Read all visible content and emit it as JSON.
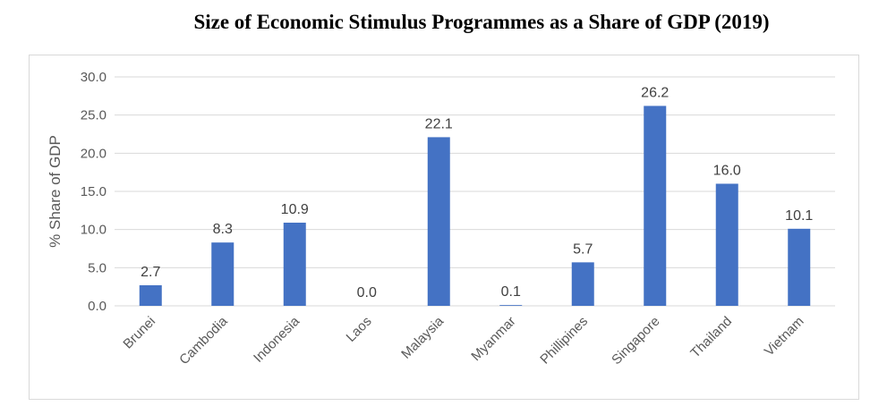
{
  "chart_data": {
    "type": "bar",
    "title": "Size of Economic Stimulus Programmes as a Share of GDP (2019)",
    "xlabel": "",
    "ylabel": "% Share of GDP",
    "categories": [
      "Brunei",
      "Cambodia",
      "Indonesia",
      "Laos",
      "Malaysia",
      "Myanmar",
      "Phillipines",
      "Singapore",
      "Thailand",
      "Vietnam"
    ],
    "values": [
      2.7,
      8.3,
      10.9,
      0.0,
      22.1,
      0.1,
      5.7,
      26.2,
      16.0,
      10.1
    ],
    "data_labels": [
      "2.7",
      "8.3",
      "10.9",
      "0.0",
      "22.1",
      "0.1",
      "5.7",
      "26.2",
      "16.0",
      "10.1"
    ],
    "yticks": [
      "0.0",
      "5.0",
      "10.0",
      "15.0",
      "20.0",
      "25.0",
      "30.0"
    ],
    "ylim": [
      0,
      30
    ],
    "grid": true,
    "legend": "none",
    "bar_color": "#4472c4",
    "grid_color": "#d9d9d9"
  }
}
